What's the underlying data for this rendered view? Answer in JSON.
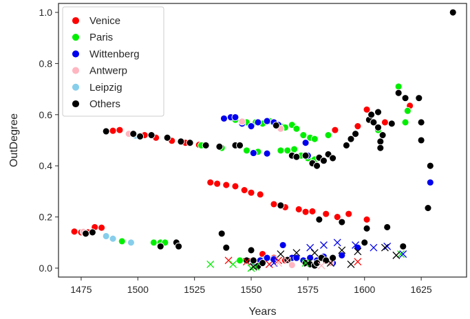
{
  "chart_data": {
    "type": "scatter",
    "xlabel": "Years",
    "ylabel": "OutDegree",
    "xlim": [
      1465,
      1645
    ],
    "ylim": [
      -0.035,
      1.035
    ],
    "xticks": [
      1475,
      1500,
      1525,
      1550,
      1575,
      1600,
      1625
    ],
    "yticks": [
      0.0,
      0.2,
      0.4,
      0.6,
      0.8,
      1.0
    ],
    "ytick_labels": [
      "0.0",
      "0.2",
      "0.4",
      "0.6",
      "0.8",
      "1.0"
    ],
    "grid": false,
    "legend_position": "top-left",
    "series": [
      {
        "name": "Venice",
        "color": "#ff0000",
        "marker": "circle",
        "points": [
          [
            1472,
            0.143
          ],
          [
            1475,
            0.14
          ],
          [
            1478,
            0.14
          ],
          [
            1481,
            0.16
          ],
          [
            1484,
            0.158
          ],
          [
            1489,
            0.537
          ],
          [
            1492,
            0.54
          ],
          [
            1503,
            0.52
          ],
          [
            1508,
            0.51
          ],
          [
            1515,
            0.498
          ],
          [
            1521,
            0.49
          ],
          [
            1527,
            0.482
          ],
          [
            1532,
            0.335
          ],
          [
            1535,
            0.33
          ],
          [
            1539,
            0.325
          ],
          [
            1543,
            0.32
          ],
          [
            1547,
            0.305
          ],
          [
            1550,
            0.295
          ],
          [
            1554,
            0.288
          ],
          [
            1560,
            0.25
          ],
          [
            1565,
            0.238
          ],
          [
            1571,
            0.23
          ],
          [
            1574,
            0.22
          ],
          [
            1577,
            0.222
          ],
          [
            1583,
            0.212
          ],
          [
            1588,
            0.2
          ],
          [
            1593,
            0.212
          ],
          [
            1601,
            0.19
          ],
          [
            1555,
            0.055
          ],
          [
            1560,
            0.04
          ],
          [
            1565,
            0.03
          ],
          [
            1587,
            0.54
          ],
          [
            1597,
            0.555
          ],
          [
            1601,
            0.62
          ],
          [
            1609,
            0.57
          ],
          [
            1620,
            0.635
          ]
        ]
      },
      {
        "name": "Paris",
        "color": "#00ee00",
        "marker": "circle",
        "points": [
          [
            1493,
            0.105
          ],
          [
            1507,
            0.1
          ],
          [
            1510,
            0.1
          ],
          [
            1512,
            0.1
          ],
          [
            1528,
            0.48
          ],
          [
            1537,
            0.47
          ],
          [
            1543,
            0.58
          ],
          [
            1548,
            0.57
          ],
          [
            1552,
            0.57
          ],
          [
            1555,
            0.565
          ],
          [
            1558,
            0.575
          ],
          [
            1563,
            0.555
          ],
          [
            1565,
            0.55
          ],
          [
            1568,
            0.56
          ],
          [
            1570,
            0.545
          ],
          [
            1573,
            0.52
          ],
          [
            1576,
            0.51
          ],
          [
            1578,
            0.505
          ],
          [
            1548,
            0.46
          ],
          [
            1553,
            0.455
          ],
          [
            1563,
            0.46
          ],
          [
            1566,
            0.46
          ],
          [
            1569,
            0.465
          ],
          [
            1572,
            0.44
          ],
          [
            1575,
            0.43
          ],
          [
            1578,
            0.425
          ],
          [
            1580,
            0.43
          ],
          [
            1584,
            0.52
          ],
          [
            1606,
            0.54
          ],
          [
            1615,
            0.71
          ],
          [
            1618,
            0.57
          ],
          [
            1619,
            0.615
          ],
          [
            1545,
            0.03
          ],
          [
            1555,
            0.03
          ]
        ]
      },
      {
        "name": "Wittenberg",
        "color": "#0000ee",
        "marker": "circle",
        "points": [
          [
            1538,
            0.585
          ],
          [
            1541,
            0.59
          ],
          [
            1543,
            0.59
          ],
          [
            1546,
            0.565
          ],
          [
            1550,
            0.555
          ],
          [
            1553,
            0.57
          ],
          [
            1557,
            0.575
          ],
          [
            1560,
            0.57
          ],
          [
            1562,
            0.56
          ],
          [
            1551,
            0.45
          ],
          [
            1557,
            0.448
          ],
          [
            1575,
            0.44
          ],
          [
            1574,
            0.49
          ],
          [
            1551,
            0.025
          ],
          [
            1554,
            0.03
          ],
          [
            1557,
            0.04
          ],
          [
            1560,
            0.035
          ],
          [
            1564,
            0.09
          ],
          [
            1568,
            0.04
          ],
          [
            1570,
            0.04
          ],
          [
            1573,
            0.03
          ],
          [
            1576,
            0.04
          ],
          [
            1579,
            0.03
          ],
          [
            1582,
            0.045
          ],
          [
            1586,
            0.02
          ],
          [
            1590,
            0.05
          ],
          [
            1597,
            0.08
          ],
          [
            1629,
            0.335
          ]
        ]
      },
      {
        "name": "Antwerp",
        "color": "#ffb6c1",
        "marker": "circle",
        "points": [
          [
            1476,
            0.142
          ],
          [
            1496,
            0.525
          ],
          [
            1546,
            0.573
          ],
          [
            1563,
            0.545
          ],
          [
            1568,
            0.012
          ],
          [
            1585,
            0.02
          ]
        ]
      },
      {
        "name": "Leipzig",
        "color": "#87ceeb",
        "marker": "circle",
        "points": [
          [
            1486,
            0.125
          ],
          [
            1489,
            0.115
          ],
          [
            1497,
            0.1
          ],
          [
            1499,
            0.518
          ]
        ]
      },
      {
        "name": "Others",
        "color": "#000000",
        "marker": "circle",
        "points": [
          [
            1477,
            0.135
          ],
          [
            1480,
            0.14
          ],
          [
            1486,
            0.535
          ],
          [
            1498,
            0.525
          ],
          [
            1501,
            0.515
          ],
          [
            1506,
            0.52
          ],
          [
            1510,
            0.085
          ],
          [
            1513,
            0.51
          ],
          [
            1517,
            0.1
          ],
          [
            1518,
            0.085
          ],
          [
            1519,
            0.495
          ],
          [
            1523,
            0.49
          ],
          [
            1530,
            0.48
          ],
          [
            1536,
            0.475
          ],
          [
            1537,
            0.135
          ],
          [
            1539,
            0.08
          ],
          [
            1543,
            0.48
          ],
          [
            1545,
            0.48
          ],
          [
            1548,
            0.03
          ],
          [
            1550,
            0.07
          ],
          [
            1551,
            0.03
          ],
          [
            1553,
            0.008
          ],
          [
            1555,
            0.02
          ],
          [
            1561,
            0.558
          ],
          [
            1563,
            0.245
          ],
          [
            1566,
            0.032
          ],
          [
            1568,
            0.44
          ],
          [
            1570,
            0.435
          ],
          [
            1574,
            0.44
          ],
          [
            1577,
            0.41
          ],
          [
            1579,
            0.4
          ],
          [
            1580,
            0.432
          ],
          [
            1582,
            0.42
          ],
          [
            1584,
            0.445
          ],
          [
            1586,
            0.43
          ],
          [
            1574,
            0.02
          ],
          [
            1576,
            0.015
          ],
          [
            1578,
            0.01
          ],
          [
            1579,
            0.02
          ],
          [
            1580,
            0.19
          ],
          [
            1581,
            0.04
          ],
          [
            1583,
            0.03
          ],
          [
            1586,
            0.04
          ],
          [
            1590,
            0.18
          ],
          [
            1592,
            0.48
          ],
          [
            1594,
            0.505
          ],
          [
            1596,
            0.525
          ],
          [
            1600,
            0.1
          ],
          [
            1601,
            0.155
          ],
          [
            1602,
            0.58
          ],
          [
            1603,
            0.6
          ],
          [
            1604,
            0.57
          ],
          [
            1606,
            0.61
          ],
          [
            1606,
            0.55
          ],
          [
            1607,
            0.495
          ],
          [
            1607,
            0.47
          ],
          [
            1608,
            0.52
          ],
          [
            1610,
            0.16
          ],
          [
            1612,
            0.565
          ],
          [
            1617,
            0.085
          ],
          [
            1615,
            0.685
          ],
          [
            1618,
            0.665
          ],
          [
            1624,
            0.665
          ],
          [
            1625,
            0.57
          ],
          [
            1625,
            0.5
          ],
          [
            1629,
            0.4
          ],
          [
            1628,
            0.235
          ],
          [
            1639,
            1.0
          ]
        ]
      }
    ],
    "x_markers": [
      {
        "color": "#ff0000",
        "points": [
          [
            1540,
            0.03
          ],
          [
            1548,
            0.025
          ],
          [
            1558,
            0.015
          ],
          [
            1562,
            0.03
          ],
          [
            1597,
            0.025
          ]
        ]
      },
      {
        "color": "#00ee00",
        "points": [
          [
            1532,
            0.015
          ],
          [
            1542,
            0.015
          ],
          [
            1550,
            0.0
          ],
          [
            1552,
            0.005
          ],
          [
            1574,
            0.02
          ],
          [
            1616,
            0.055
          ]
        ]
      },
      {
        "color": "#0000ee",
        "points": [
          [
            1560,
            0.02
          ],
          [
            1576,
            0.08
          ],
          [
            1582,
            0.09
          ],
          [
            1588,
            0.1
          ],
          [
            1596,
            0.09
          ],
          [
            1604,
            0.08
          ],
          [
            1610,
            0.085
          ],
          [
            1617,
            0.055
          ]
        ]
      },
      {
        "color": "#ffb6c1",
        "points": [
          [
            1562,
            0.02
          ],
          [
            1566,
            0.03
          ],
          [
            1581,
            0.01
          ]
        ]
      },
      {
        "color": "#000000",
        "points": [
          [
            1551,
            0.005
          ],
          [
            1563,
            0.055
          ],
          [
            1570,
            0.06
          ],
          [
            1575,
            0.02
          ],
          [
            1578,
            0.06
          ],
          [
            1585,
            0.02
          ],
          [
            1590,
            0.07
          ],
          [
            1594,
            0.015
          ],
          [
            1597,
            0.065
          ],
          [
            1609,
            0.08
          ],
          [
            1614,
            0.05
          ]
        ]
      }
    ]
  }
}
